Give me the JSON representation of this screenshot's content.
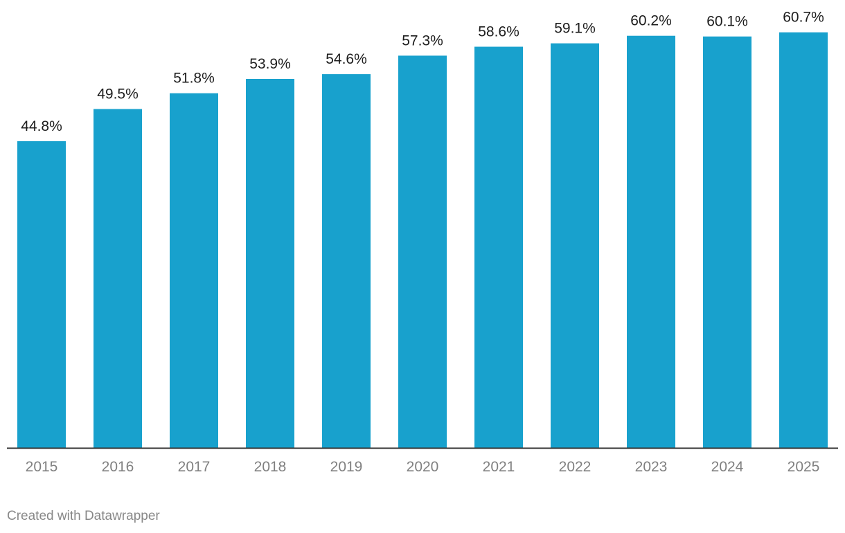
{
  "chart_data": {
    "type": "bar",
    "categories": [
      "2015",
      "2016",
      "2017",
      "2018",
      "2019",
      "2020",
      "2021",
      "2022",
      "2023",
      "2024",
      "2025"
    ],
    "values": [
      44.8,
      49.5,
      51.8,
      53.9,
      54.6,
      57.3,
      58.6,
      59.1,
      60.2,
      60.1,
      60.7
    ],
    "value_labels": [
      "44.8%",
      "49.5%",
      "51.8%",
      "53.9%",
      "54.6%",
      "57.3%",
      "58.6%",
      "59.1%",
      "60.2%",
      "60.1%",
      "60.7%"
    ],
    "title": "",
    "xlabel": "",
    "ylabel": "",
    "ylim": [
      0,
      65
    ],
    "grid": false,
    "bar_color": "#18a1cd",
    "axis_color": "#333333"
  },
  "footer": {
    "credit": "Created with Datawrapper"
  }
}
